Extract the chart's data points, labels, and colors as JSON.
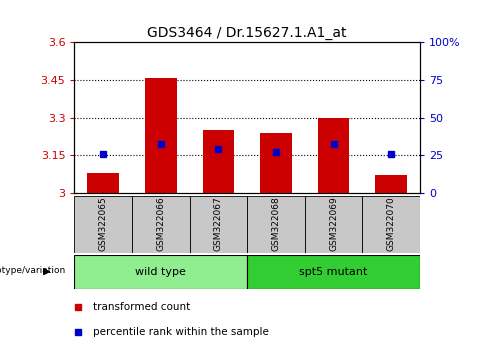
{
  "title": "GDS3464 / Dr.15627.1.A1_at",
  "samples": [
    "GSM322065",
    "GSM322066",
    "GSM322067",
    "GSM322068",
    "GSM322069",
    "GSM322070"
  ],
  "red_values": [
    3.08,
    3.46,
    3.25,
    3.24,
    3.3,
    3.07
  ],
  "blue_values": [
    3.155,
    3.195,
    3.175,
    3.165,
    3.195,
    3.155
  ],
  "ylim": [
    3.0,
    3.6
  ],
  "yticks_left": [
    3.0,
    3.15,
    3.3,
    3.45,
    3.6
  ],
  "yticks_right": [
    0,
    25,
    50,
    75,
    100
  ],
  "ytick_labels_left": [
    "3",
    "3.15",
    "3.3",
    "3.45",
    "3.6"
  ],
  "ytick_labels_right": [
    "0",
    "25",
    "50",
    "75",
    "100%"
  ],
  "groups": [
    {
      "label": "wild type",
      "samples": [
        0,
        1,
        2
      ],
      "color": "#90EE90"
    },
    {
      "label": "spt5 mutant",
      "samples": [
        3,
        4,
        5
      ],
      "color": "#32CD32"
    }
  ],
  "bar_color": "#CC0000",
  "dot_color": "#0000CC",
  "background_color": "#FFFFFF",
  "label_bg_color": "#C8C8C8",
  "genotype_label": "genotype/variation",
  "legend_items": [
    {
      "color": "#CC0000",
      "label": "transformed count"
    },
    {
      "color": "#0000CC",
      "label": "percentile rank within the sample"
    }
  ]
}
